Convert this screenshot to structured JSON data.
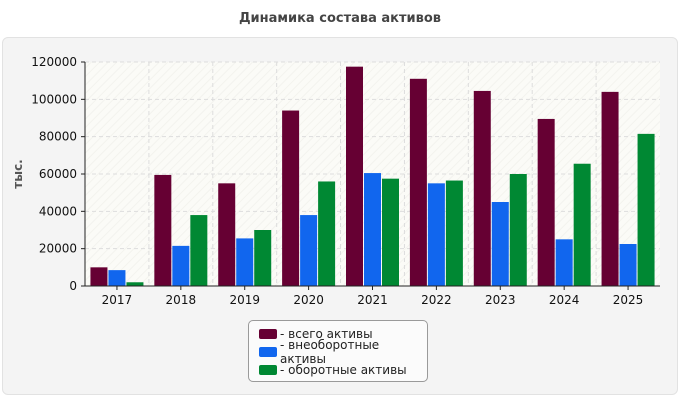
{
  "chart_data": {
    "type": "bar",
    "title": "Динамика состава активов",
    "ylabel": "тыс.",
    "xlabel": "",
    "categories": [
      "2017",
      "2018",
      "2019",
      "2020",
      "2021",
      "2022",
      "2023",
      "2024",
      "2025"
    ],
    "series": [
      {
        "name": "- всего активы",
        "color": "#660033",
        "values": [
          10000,
          59500,
          55000,
          94000,
          117500,
          111000,
          104500,
          89500,
          104000
        ]
      },
      {
        "name": "- внеоборотные активы",
        "color": "#1166ee",
        "values": [
          8500,
          21500,
          25500,
          38000,
          60500,
          55000,
          45000,
          25000,
          22500
        ]
      },
      {
        "name": "- оборотные активы",
        "color": "#008833",
        "values": [
          2000,
          38000,
          30000,
          56000,
          57500,
          56500,
          60000,
          65500,
          81500
        ]
      }
    ],
    "ylim": [
      0,
      120000
    ],
    "yticks": [
      "0",
      "20000",
      "40000",
      "60000",
      "80000",
      "100000",
      "120000"
    ],
    "grid": true,
    "legend_position": "bottom-center"
  }
}
